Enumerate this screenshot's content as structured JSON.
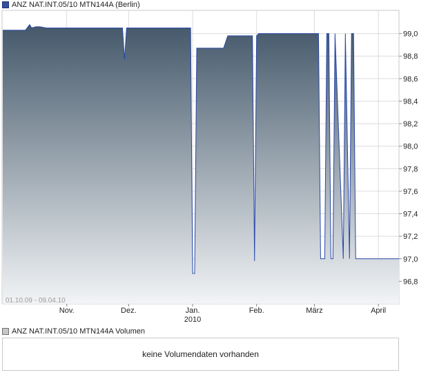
{
  "chart_data": {
    "type": "area",
    "title": "ANZ NAT.INT.05/10 MTN144A (Berlin)",
    "date_range": "01.10.09 - 09.04.10",
    "ylim": [
      96.6,
      99.2
    ],
    "y_ticks": [
      "99,0",
      "98,8",
      "98,6",
      "98,4",
      "98,2",
      "98,0",
      "97,8",
      "97,6",
      "97,4",
      "97,2",
      "97,0",
      "96,8"
    ],
    "y_tick_values": [
      99.0,
      98.8,
      98.6,
      98.4,
      98.2,
      98.0,
      97.8,
      97.6,
      97.4,
      97.2,
      97.0,
      96.8
    ],
    "x_ticks": [
      {
        "label": "Nov.",
        "sub": "",
        "date": "2009-11-01"
      },
      {
        "label": "Dez.",
        "sub": "",
        "date": "2009-12-01"
      },
      {
        "label": "Jan.",
        "sub": "2010",
        "date": "2010-01-01"
      },
      {
        "label": "Feb.",
        "sub": "",
        "date": "2010-02-01"
      },
      {
        "label": "März",
        "sub": "",
        "date": "2010-03-01"
      },
      {
        "label": "April",
        "sub": "",
        "date": "2010-04-01"
      }
    ],
    "x_range": [
      "2009-10-01",
      "2010-04-11"
    ],
    "series": [
      {
        "x": [
          "2009-10-01",
          "2009-10-12",
          "2009-10-14",
          "2009-10-15",
          "2009-10-17",
          "2009-10-19",
          "2009-10-22",
          "2009-10-24",
          "2009-11-28",
          "2009-11-29",
          "2009-11-30",
          "2009-12-02",
          "2009-12-26",
          "2009-12-31",
          "2010-01-01",
          "2010-01-02",
          "2010-01-03",
          "2010-01-04",
          "2010-01-16",
          "2010-01-18",
          "2010-01-30",
          "2010-01-31",
          "2010-02-01",
          "2010-02-02",
          "2010-03-03",
          "2010-03-04",
          "2010-03-06",
          "2010-03-07",
          "2010-03-08",
          "2010-03-09",
          "2010-03-10",
          "2010-03-11",
          "2010-03-15",
          "2010-03-16",
          "2010-03-18",
          "2010-03-19",
          "2010-03-20",
          "2010-03-21",
          "2010-03-23",
          "2010-03-24",
          "2010-03-26",
          "2010-04-11"
        ],
        "y": [
          99.03,
          99.03,
          99.08,
          99.05,
          99.06,
          99.06,
          99.05,
          99.05,
          99.05,
          98.77,
          99.05,
          99.05,
          99.05,
          99.05,
          96.87,
          96.87,
          98.87,
          98.87,
          98.87,
          98.98,
          98.98,
          96.98,
          98.98,
          99.0,
          99.0,
          97.0,
          97.0,
          99.0,
          99.0,
          97.0,
          97.0,
          99.0,
          97.0,
          99.0,
          97.0,
          99.0,
          99.0,
          97.0,
          97.0,
          97.0,
          97.0,
          97.0
        ]
      }
    ]
  },
  "volume": {
    "legend": "ANZ NAT.INT.05/10 MTN144A Volumen",
    "empty_text": "keine Volumendaten vorhanden"
  },
  "colors": {
    "line": "#2848a8",
    "fill_top": "#44586a",
    "fill_bottom": "#f2f4f6",
    "grid": "#dcdcdc"
  }
}
